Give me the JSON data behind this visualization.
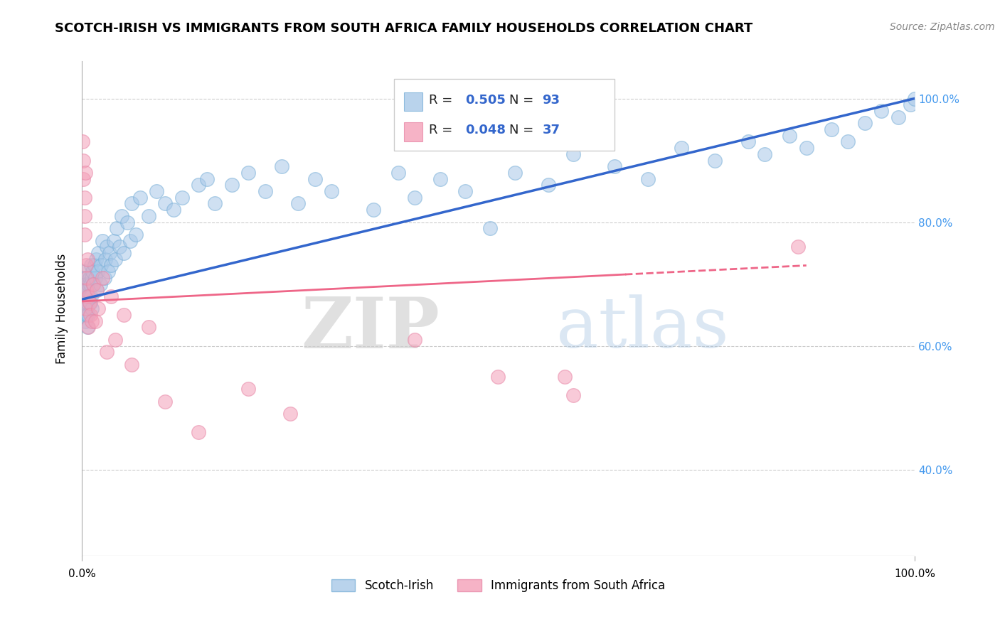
{
  "title": "SCOTCH-IRISH VS IMMIGRANTS FROM SOUTH AFRICA FAMILY HOUSEHOLDS CORRELATION CHART",
  "source": "Source: ZipAtlas.com",
  "ylabel": "Family Households",
  "xlim": [
    0.0,
    1.0
  ],
  "ylim": [
    0.26,
    1.06
  ],
  "yticks": [
    0.4,
    0.6,
    0.8,
    1.0
  ],
  "ytick_labels": [
    "40.0%",
    "60.0%",
    "80.0%",
    "100.0%"
  ],
  "blue_R": 0.505,
  "blue_N": 93,
  "pink_R": 0.048,
  "pink_N": 37,
  "blue_color": "#a8c8e8",
  "pink_color": "#f4a0b8",
  "blue_line_color": "#3366cc",
  "pink_line_color": "#ee6688",
  "background_color": "#ffffff",
  "grid_color": "#cccccc",
  "title_fontsize": 13,
  "label_fontsize": 12,
  "tick_fontsize": 11,
  "legend_label_blue": "Scotch-Irish",
  "legend_label_pink": "Immigrants from South Africa",
  "watermark_zip": "ZIP",
  "watermark_atlas": "atlas",
  "right_ytick_color": "#4499ee",
  "blue_line_start_y": 0.675,
  "blue_line_end_y": 1.0,
  "pink_line_start_y": 0.672,
  "pink_line_end_y": 0.73,
  "pink_line_end_x": 0.87,
  "blue_scatter_x": [
    0.002,
    0.003,
    0.003,
    0.004,
    0.004,
    0.004,
    0.005,
    0.005,
    0.005,
    0.005,
    0.006,
    0.006,
    0.006,
    0.007,
    0.007,
    0.007,
    0.008,
    0.008,
    0.009,
    0.009,
    0.01,
    0.01,
    0.011,
    0.011,
    0.012,
    0.012,
    0.013,
    0.014,
    0.015,
    0.016,
    0.017,
    0.018,
    0.019,
    0.02,
    0.022,
    0.023,
    0.025,
    0.027,
    0.028,
    0.03,
    0.032,
    0.033,
    0.035,
    0.038,
    0.04,
    0.042,
    0.045,
    0.048,
    0.05,
    0.055,
    0.058,
    0.06,
    0.065,
    0.07,
    0.08,
    0.09,
    0.1,
    0.11,
    0.12,
    0.14,
    0.15,
    0.16,
    0.18,
    0.2,
    0.22,
    0.24,
    0.26,
    0.28,
    0.3,
    0.35,
    0.38,
    0.4,
    0.43,
    0.46,
    0.49,
    0.52,
    0.56,
    0.59,
    0.64,
    0.68,
    0.72,
    0.76,
    0.8,
    0.82,
    0.85,
    0.87,
    0.9,
    0.92,
    0.94,
    0.96,
    0.98,
    0.995,
    1.0
  ],
  "blue_scatter_y": [
    0.69,
    0.67,
    0.72,
    0.64,
    0.71,
    0.68,
    0.67,
    0.65,
    0.7,
    0.69,
    0.68,
    0.66,
    0.65,
    0.69,
    0.67,
    0.63,
    0.7,
    0.65,
    0.71,
    0.68,
    0.7,
    0.67,
    0.73,
    0.68,
    0.71,
    0.66,
    0.72,
    0.7,
    0.73,
    0.71,
    0.74,
    0.69,
    0.72,
    0.75,
    0.7,
    0.73,
    0.77,
    0.71,
    0.74,
    0.76,
    0.72,
    0.75,
    0.73,
    0.77,
    0.74,
    0.79,
    0.76,
    0.81,
    0.75,
    0.8,
    0.77,
    0.83,
    0.78,
    0.84,
    0.81,
    0.85,
    0.83,
    0.82,
    0.84,
    0.86,
    0.87,
    0.83,
    0.86,
    0.88,
    0.85,
    0.89,
    0.83,
    0.87,
    0.85,
    0.82,
    0.88,
    0.84,
    0.87,
    0.85,
    0.79,
    0.88,
    0.86,
    0.91,
    0.89,
    0.87,
    0.92,
    0.9,
    0.93,
    0.91,
    0.94,
    0.92,
    0.95,
    0.93,
    0.96,
    0.98,
    0.97,
    0.99,
    1.0
  ],
  "pink_scatter_x": [
    0.001,
    0.002,
    0.002,
    0.003,
    0.003,
    0.003,
    0.004,
    0.004,
    0.005,
    0.005,
    0.006,
    0.007,
    0.008,
    0.008,
    0.009,
    0.01,
    0.012,
    0.014,
    0.016,
    0.018,
    0.02,
    0.025,
    0.03,
    0.035,
    0.04,
    0.05,
    0.06,
    0.08,
    0.1,
    0.14,
    0.2,
    0.25,
    0.4,
    0.5,
    0.58,
    0.59,
    0.86
  ],
  "pink_scatter_y": [
    0.93,
    0.9,
    0.87,
    0.84,
    0.81,
    0.78,
    0.88,
    0.66,
    0.73,
    0.69,
    0.71,
    0.74,
    0.68,
    0.63,
    0.67,
    0.65,
    0.64,
    0.7,
    0.64,
    0.69,
    0.66,
    0.71,
    0.59,
    0.68,
    0.61,
    0.65,
    0.57,
    0.63,
    0.51,
    0.46,
    0.53,
    0.49,
    0.61,
    0.55,
    0.55,
    0.52,
    0.76
  ]
}
